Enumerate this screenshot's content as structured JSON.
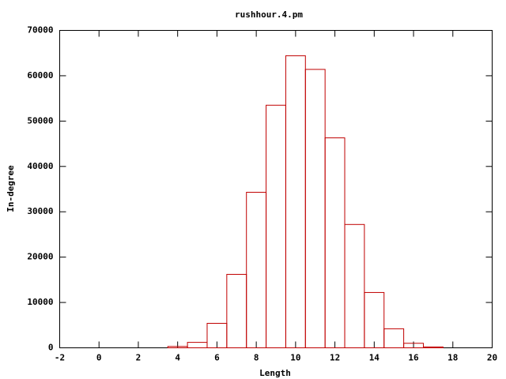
{
  "chart_data": {
    "type": "histogram",
    "title": "rushhour.4.pm",
    "x_label": "Length",
    "y_label": "In-degree",
    "bins": [
      3.5,
      4.5,
      5.5,
      6.5,
      7.5,
      8.5,
      9.5,
      10.5,
      11.5,
      12.5,
      13.5,
      14.5,
      15.5,
      16.5,
      17.5
    ],
    "values": [
      300,
      1200,
      5400,
      16200,
      34300,
      53500,
      64400,
      61400,
      46300,
      27200,
      12200,
      4200,
      1000,
      200
    ],
    "color": "#c00000",
    "xlim": [
      -2,
      20
    ],
    "xticks": [
      -2,
      0,
      2,
      4,
      6,
      8,
      10,
      12,
      14,
      16,
      18,
      20
    ],
    "ylim": [
      0,
      70000
    ],
    "yticks": [
      0,
      10000,
      20000,
      30000,
      40000,
      50000,
      60000,
      70000
    ]
  }
}
